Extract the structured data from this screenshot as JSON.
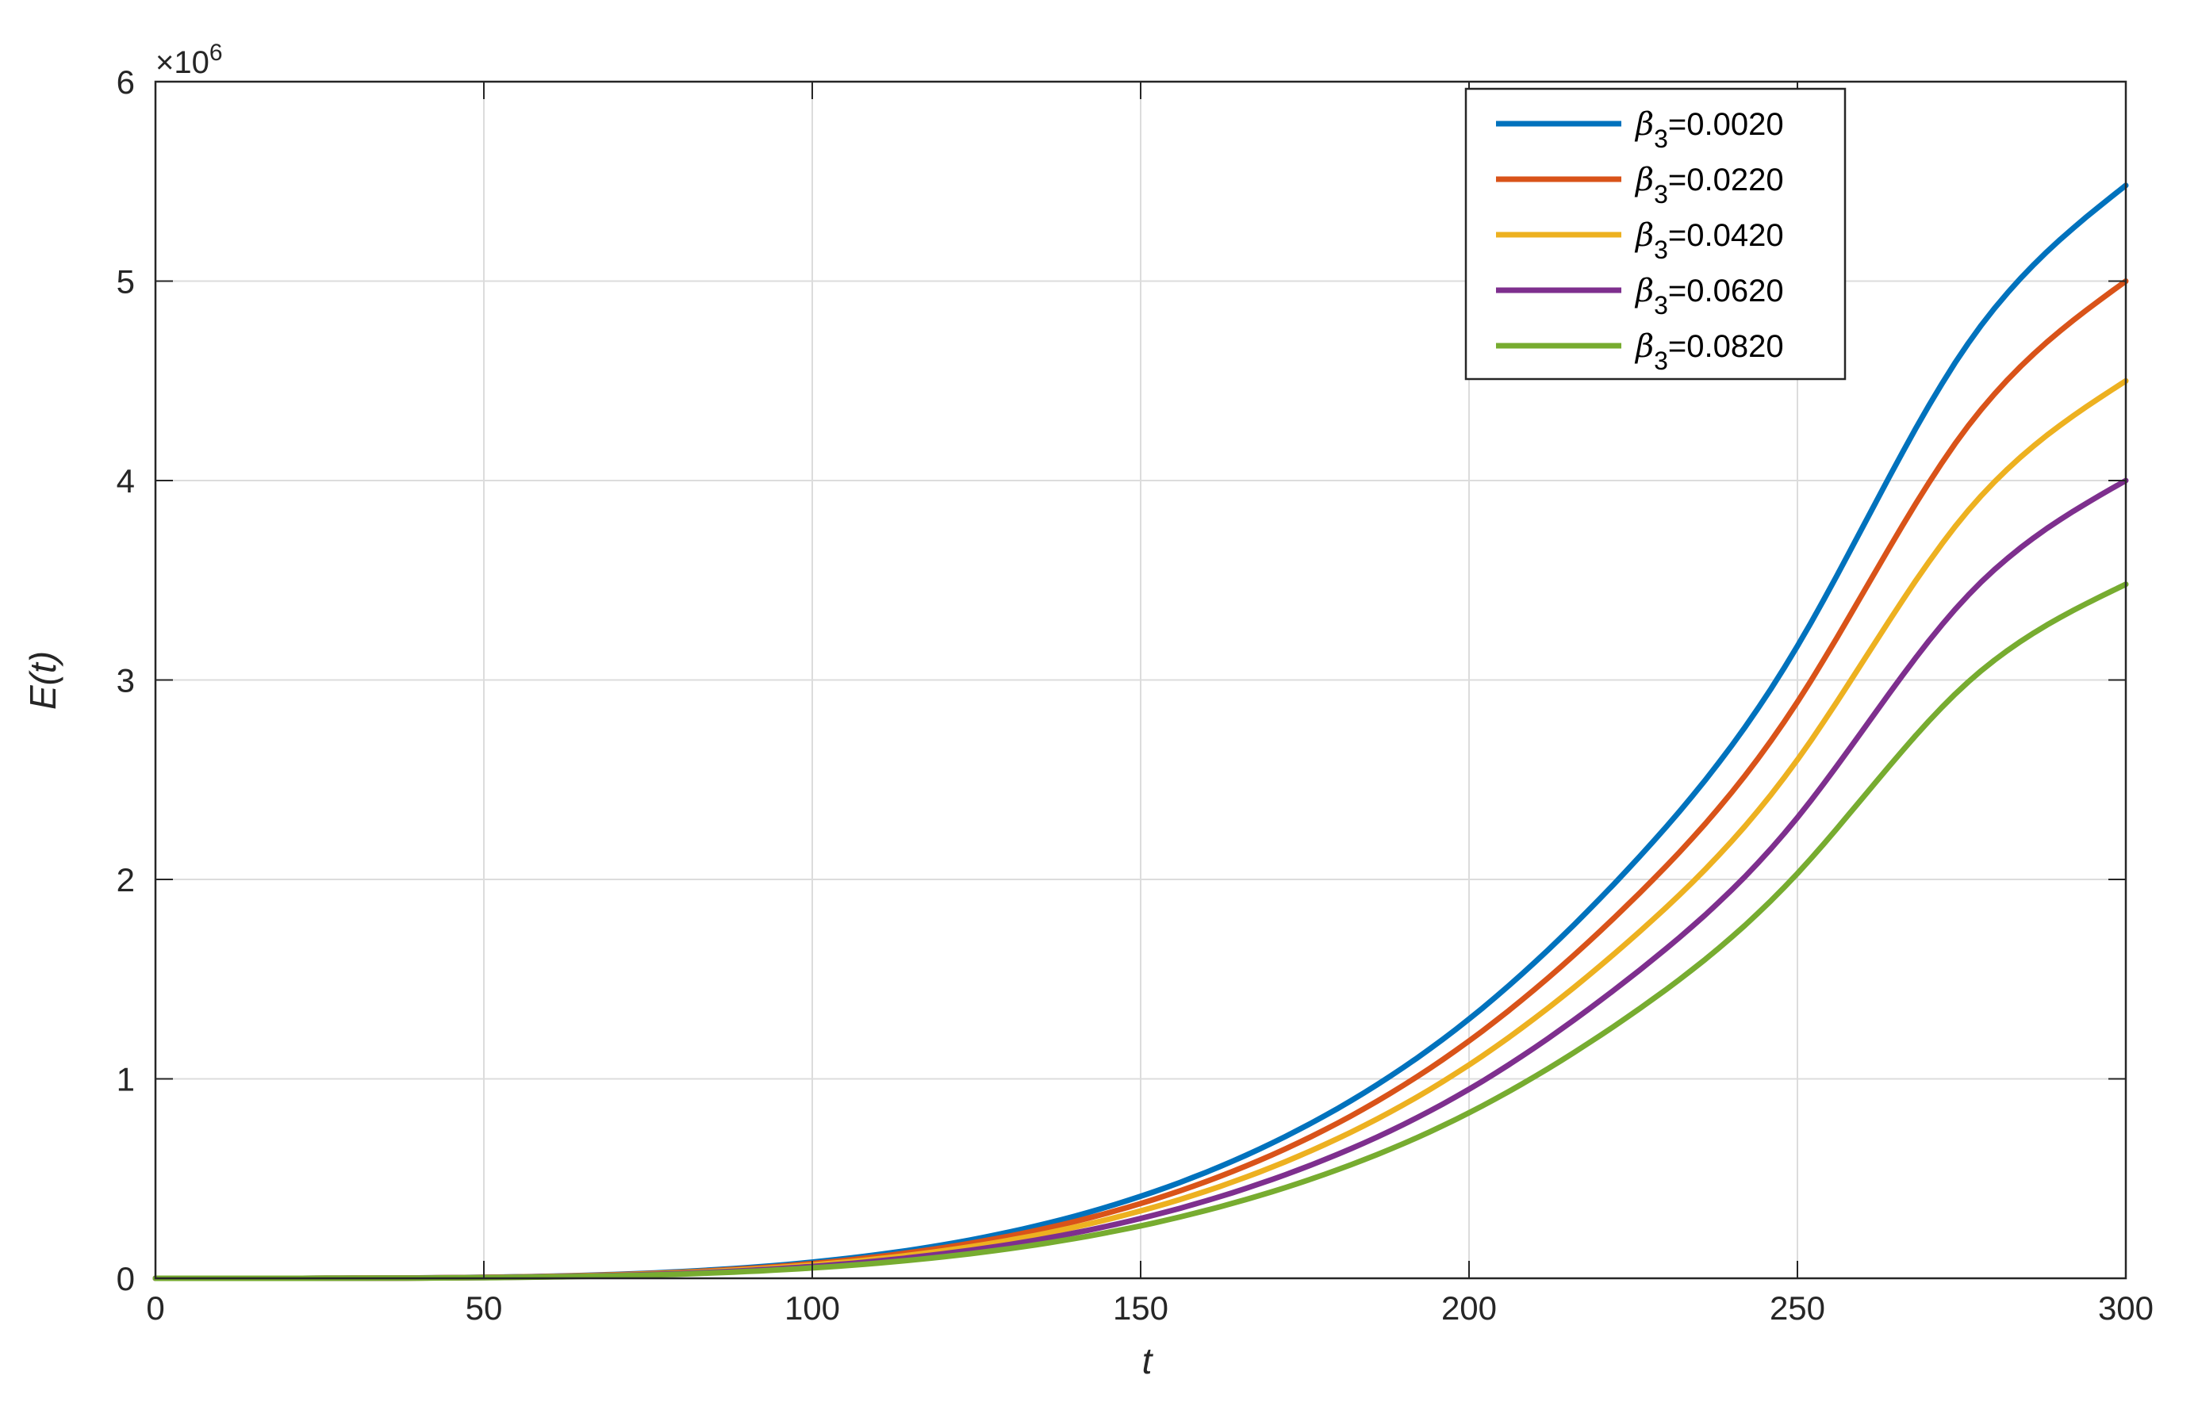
{
  "chart_data": {
    "type": "line",
    "xlabel": "t",
    "ylabel": "E(t)",
    "y_exponent_label": "×10",
    "y_exponent_power": "6",
    "xlim": [
      0,
      300
    ],
    "ylim": [
      0,
      6
    ],
    "y_unit_multiplier": 1000000,
    "grid": true,
    "legend_position": "top-right",
    "x_ticks": [
      "0",
      "50",
      "100",
      "150",
      "200",
      "250",
      "300"
    ],
    "y_ticks": [
      "0",
      "1",
      "2",
      "3",
      "4",
      "5",
      "6"
    ],
    "x": [
      0,
      25,
      50,
      75,
      100,
      125,
      150,
      175,
      200,
      225,
      250,
      275,
      300
    ],
    "series": [
      {
        "name_symbol": "β",
        "name_subscript": "3",
        "name_value": "=0.0020",
        "color": "#0072BD",
        "values": [
          0.0,
          0.0003,
          0.0051,
          0.0257,
          0.0812,
          0.198,
          0.411,
          0.761,
          1.3,
          2.08,
          3.17,
          4.64,
          5.48
        ]
      },
      {
        "name_symbol": "β",
        "name_subscript": "3",
        "name_value": "=0.0220",
        "color": "#D95319",
        "values": [
          0.0,
          0.0003,
          0.0046,
          0.0234,
          0.0741,
          0.181,
          0.375,
          0.695,
          1.19,
          1.9,
          2.89,
          4.23,
          5.0
        ]
      },
      {
        "name_symbol": "β",
        "name_subscript": "3",
        "name_value": "=0.0420",
        "color": "#EDB120",
        "values": [
          0.0,
          0.0002,
          0.0042,
          0.0211,
          0.0667,
          0.163,
          0.338,
          0.626,
          1.07,
          1.71,
          2.6,
          3.81,
          4.5
        ]
      },
      {
        "name_symbol": "β",
        "name_subscript": "3",
        "name_value": "=0.0620",
        "color": "#7E2F8E",
        "values": [
          0.0,
          0.0002,
          0.0037,
          0.0187,
          0.0593,
          0.145,
          0.3,
          0.556,
          0.948,
          1.52,
          2.31,
          3.39,
          4.0
        ]
      },
      {
        "name_symbol": "β",
        "name_subscript": "3",
        "name_value": "=0.0820",
        "color": "#77AC30",
        "values": [
          0.0,
          0.0002,
          0.0032,
          0.0164,
          0.0519,
          0.127,
          0.263,
          0.487,
          0.83,
          1.33,
          2.03,
          2.96,
          3.48
        ]
      }
    ]
  }
}
